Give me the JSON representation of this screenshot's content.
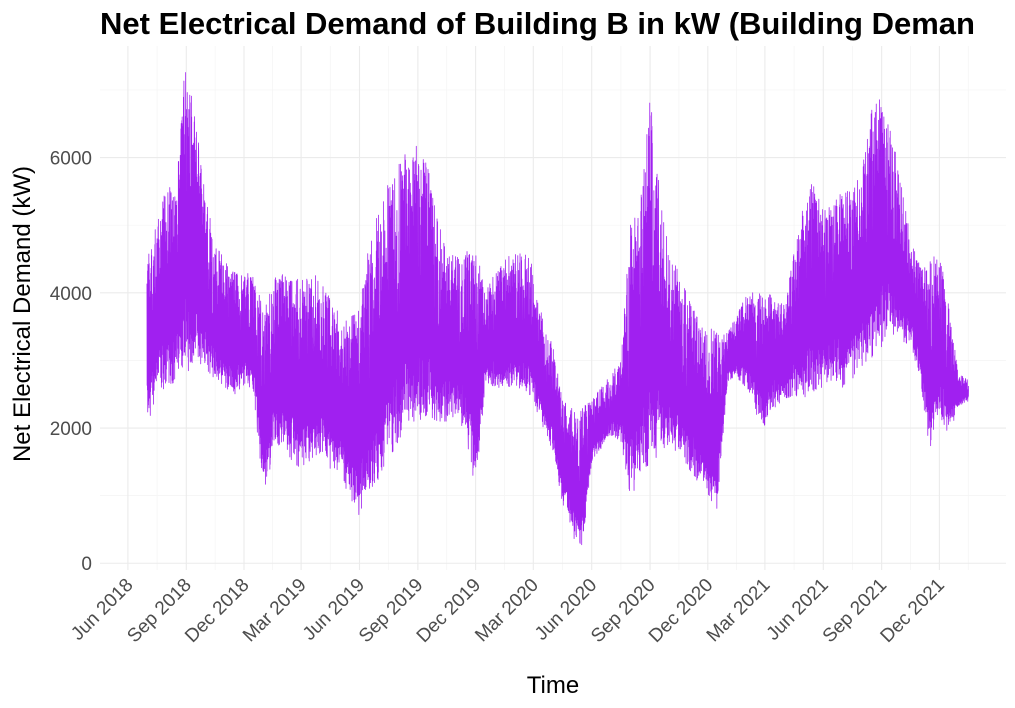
{
  "chart_data": {
    "type": "line",
    "title": "Net Electrical Demand of Building B in kW (Building Deman",
    "xlabel": "Time",
    "ylabel": "Net Electrical Demand (kW)",
    "ylim": [
      -100,
      7650
    ],
    "y_ticks": [
      0,
      2000,
      4000,
      6000
    ],
    "y_tick_labels": [
      "0",
      "2000",
      "4000",
      "6000"
    ],
    "x_ticks": [
      "2018-06-01",
      "2018-09-01",
      "2018-12-01",
      "2019-03-01",
      "2019-06-01",
      "2019-09-01",
      "2019-12-01",
      "2020-03-01",
      "2020-06-01",
      "2020-09-01",
      "2020-12-01",
      "2021-03-01",
      "2021-06-01",
      "2021-09-01",
      "2021-12-01"
    ],
    "x_tick_labels": [
      "Jun 2018",
      "Sep 2018",
      "Dec 2018",
      "Mar 2019",
      "Jun 2019",
      "Sep 2019",
      "Dec 2019",
      "Mar 2020",
      "Jun 2020",
      "Sep 2020",
      "Dec 2020",
      "Mar 2021",
      "Jun 2021",
      "Sep 2021",
      "Dec 2021"
    ],
    "xlim": [
      "2018-04-18",
      "2022-03-16"
    ],
    "grid": true,
    "legend": "none",
    "color": "#a020f0",
    "series": [
      {
        "name": "",
        "x": [
          "2018-07-01",
          "2018-07-16",
          "2018-08-01",
          "2018-08-16",
          "2018-09-01",
          "2018-09-16",
          "2018-10-01",
          "2018-10-16",
          "2018-11-01",
          "2018-11-16",
          "2018-12-01",
          "2018-12-16",
          "2019-01-01",
          "2019-01-16",
          "2019-02-01",
          "2019-02-16",
          "2019-03-01",
          "2019-03-16",
          "2019-04-01",
          "2019-04-16",
          "2019-05-01",
          "2019-05-16",
          "2019-06-01",
          "2019-06-16",
          "2019-07-01",
          "2019-07-16",
          "2019-08-01",
          "2019-08-16",
          "2019-09-01",
          "2019-09-16",
          "2019-10-01",
          "2019-10-16",
          "2019-11-01",
          "2019-11-16",
          "2019-12-01",
          "2019-12-16",
          "2020-01-01",
          "2020-01-16",
          "2020-02-01",
          "2020-02-16",
          "2020-03-01",
          "2020-03-16",
          "2020-04-01",
          "2020-04-16",
          "2020-05-01",
          "2020-05-16",
          "2020-06-01",
          "2020-06-16",
          "2020-07-01",
          "2020-07-16",
          "2020-08-01",
          "2020-08-16",
          "2020-09-01",
          "2020-09-16",
          "2020-10-01",
          "2020-10-16",
          "2020-11-01",
          "2020-11-16",
          "2020-12-01",
          "2020-12-16",
          "2021-01-01",
          "2021-01-16",
          "2021-02-01",
          "2021-02-16",
          "2021-03-01",
          "2021-03-16",
          "2021-04-01",
          "2021-04-16",
          "2021-05-01",
          "2021-05-16",
          "2021-06-01",
          "2021-06-16",
          "2021-07-01",
          "2021-07-16",
          "2021-08-01",
          "2021-08-16",
          "2021-09-01",
          "2021-09-16",
          "2021-10-01",
          "2021-10-16",
          "2021-11-01",
          "2021-11-16",
          "2021-12-01",
          "2021-12-16",
          "2022-01-01",
          "2022-01-16"
        ],
        "min": [
          2000,
          2500,
          2600,
          2700,
          2800,
          3000,
          2900,
          2700,
          2600,
          2500,
          2600,
          2500,
          1000,
          1600,
          1700,
          1500,
          1400,
          1500,
          1600,
          1400,
          1300,
          1000,
          700,
          1100,
          1200,
          1500,
          1800,
          2100,
          2100,
          2200,
          2100,
          2100,
          2200,
          1900,
          1000,
          2600,
          2600,
          2600,
          2600,
          2500,
          2400,
          2000,
          1600,
          900,
          400,
          150,
          1500,
          1700,
          1900,
          1800,
          1000,
          1200,
          1500,
          1600,
          1600,
          1700,
          1400,
          1200,
          1000,
          800,
          2700,
          2700,
          2600,
          2200,
          2000,
          2300,
          2400,
          2500,
          2400,
          2500,
          2600,
          2700,
          2600,
          2700,
          2800,
          3000,
          3200,
          3400,
          3300,
          3200,
          2700,
          1600,
          2200,
          1900,
          2300,
          2400
        ],
        "max": [
          4500,
          5000,
          5600,
          5600,
          7600,
          6500,
          5500,
          4700,
          4500,
          4300,
          4300,
          4300,
          3700,
          4200,
          4300,
          4200,
          4200,
          4300,
          4200,
          3900,
          3700,
          3600,
          3800,
          4700,
          5200,
          5600,
          5900,
          6100,
          6200,
          5900,
          5100,
          4700,
          4600,
          4600,
          4700,
          4000,
          4300,
          4500,
          4600,
          4600,
          4400,
          3600,
          3200,
          2400,
          2300,
          2300,
          2400,
          2600,
          2800,
          3000,
          5000,
          5300,
          6900,
          5500,
          4600,
          4300,
          3900,
          3600,
          3500,
          3400,
          3400,
          3700,
          4000,
          4000,
          4000,
          4000,
          3800,
          4600,
          5300,
          5700,
          5200,
          5300,
          5500,
          5500,
          5800,
          6700,
          6900,
          6500,
          5800,
          4800,
          4500,
          4500,
          4600,
          3800,
          2800,
          2700
        ]
      }
    ]
  }
}
